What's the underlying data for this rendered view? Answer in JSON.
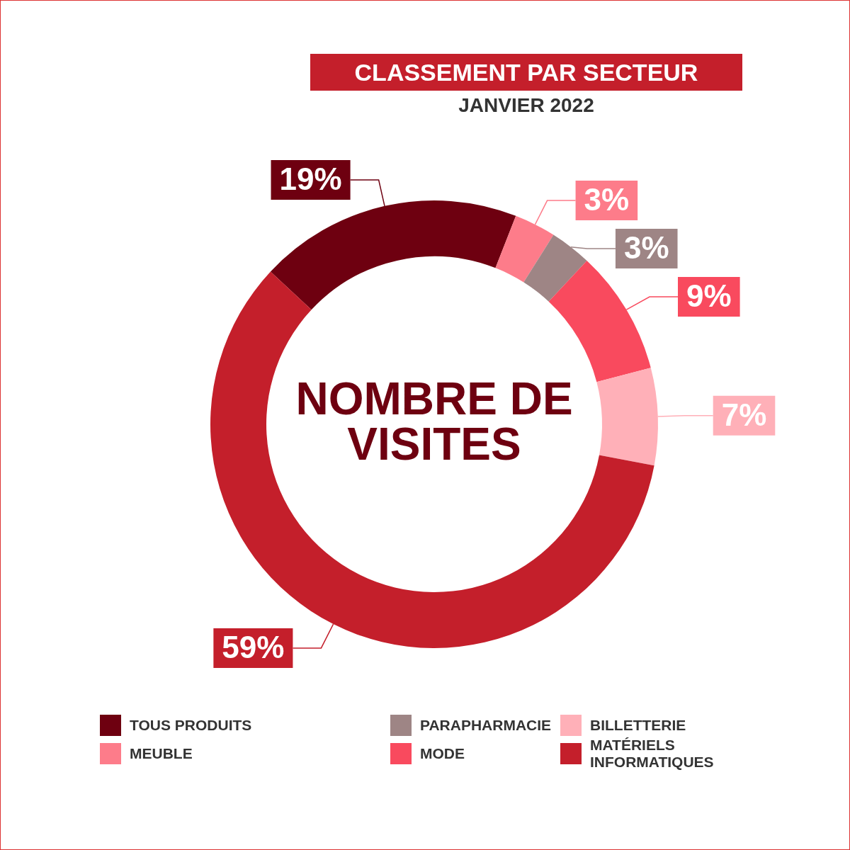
{
  "chart_data": {
    "type": "donut",
    "title": "CLASSEMENT PAR SECTEUR",
    "subtitle": "JANVIER 2022",
    "categories": [
      "TOUS PRODUITS",
      "MEUBLE",
      "PARAPHARMACIE",
      "MODE",
      "BILLETTERIE",
      "MATÉRIELS INFORMATIQUES"
    ],
    "values": [
      19,
      3,
      3,
      9,
      7,
      59
    ],
    "colors": [
      "#6e0010",
      "#fd7c8a",
      "#9e8585",
      "#f94a5e",
      "#ffb0b8",
      "#c41f2b"
    ],
    "value_labels": [
      "19%",
      "3%",
      "3%",
      "9%",
      "7%",
      "59%"
    ],
    "annotations": [
      "NOMBRE DE VISITES"
    ],
    "legend": "bottom"
  }
}
